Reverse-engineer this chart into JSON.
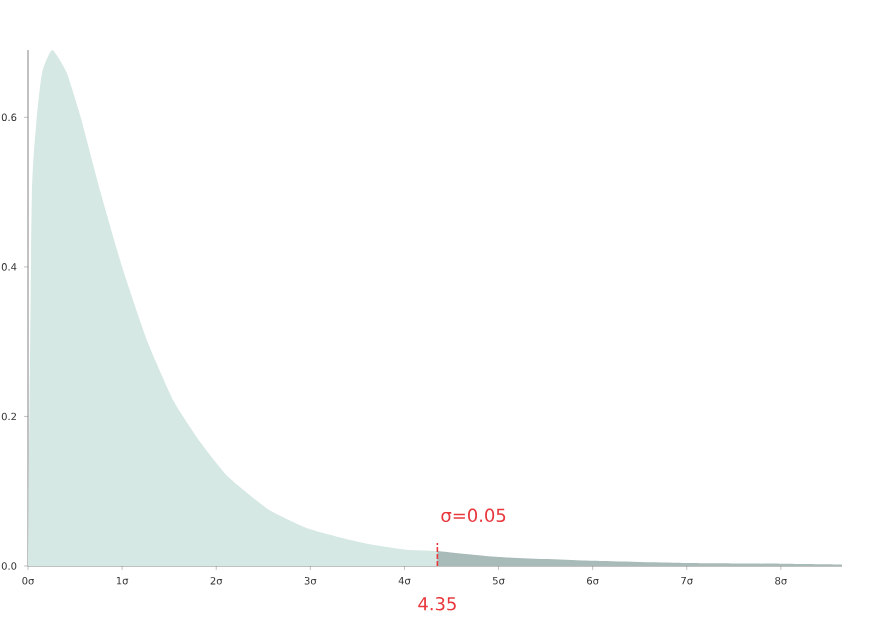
{
  "chart_data": {
    "type": "area",
    "series": [
      {
        "color": "#d6e8e4",
        "x": [
          0,
          0.04,
          0.09,
          0.15,
          0.257,
          0.41,
          0.56,
          0.77,
          1.0,
          1.27,
          1.55,
          1.84,
          2.12,
          2.55,
          3.0,
          3.55,
          4.0,
          4.35
        ],
        "values": [
          0,
          0.49,
          0.595,
          0.66,
          0.69,
          0.66,
          0.6,
          0.5,
          0.4,
          0.3,
          0.22,
          0.164,
          0.12,
          0.076,
          0.049,
          0.031,
          0.022,
          0.02
        ]
      },
      {
        "color": "#a8bbb8",
        "x": [
          4.35,
          5,
          6,
          7,
          8,
          8.65
        ],
        "values": [
          0.02,
          0.012,
          0.007,
          0.004,
          0.003,
          0.002
        ]
      }
    ],
    "xlim": [
      0,
      8.65
    ],
    "ylim": [
      0,
      0.69
    ],
    "xticks": [
      {
        "value": 0,
        "label": "0σ"
      },
      {
        "value": 1,
        "label": "1σ"
      },
      {
        "value": 2,
        "label": "2σ"
      },
      {
        "value": 3,
        "label": "3σ"
      },
      {
        "value": 4,
        "label": "4σ"
      },
      {
        "value": 5,
        "label": "5σ"
      },
      {
        "value": 6,
        "label": "6σ"
      },
      {
        "value": 7,
        "label": "7σ"
      },
      {
        "value": 8,
        "label": "8σ"
      }
    ],
    "yticks": [
      {
        "value": 0,
        "label": "0.0"
      },
      {
        "value": 0.2,
        "label": "0.2"
      },
      {
        "value": 0.4,
        "label": "0.4"
      },
      {
        "value": 0.6,
        "label": "0.6"
      }
    ],
    "annotations": [
      {
        "text": "σ=0.05",
        "x": 4.35,
        "y": 0.02
      },
      {
        "text": "4.35",
        "x": 4.35,
        "y": 0
      }
    ],
    "grid": false
  }
}
